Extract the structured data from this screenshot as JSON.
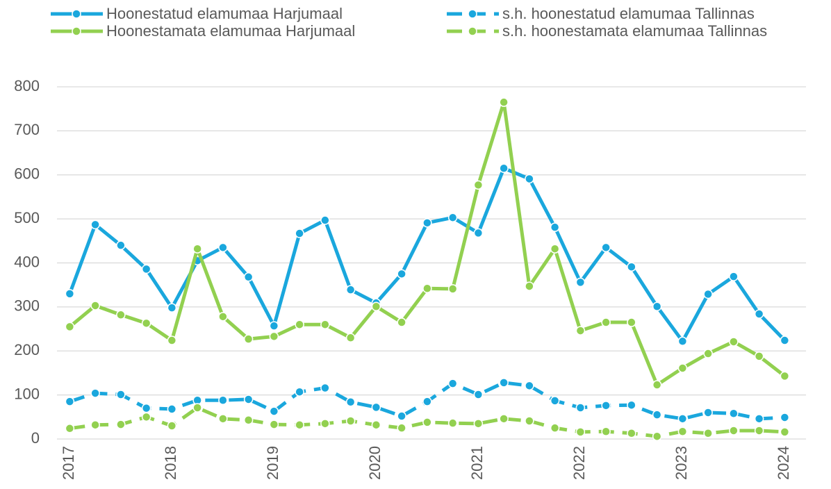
{
  "chart_data": {
    "type": "line",
    "categories": [
      "2017",
      null,
      null,
      null,
      "2018",
      null,
      null,
      null,
      "2019",
      null,
      null,
      null,
      "2020",
      null,
      null,
      null,
      "2021",
      null,
      null,
      null,
      "2022",
      null,
      null,
      null,
      "2023",
      null,
      null,
      null,
      "2024"
    ],
    "series": [
      {
        "name": "Hoonestatud elamumaa Harjumaal",
        "color": "#1aa7dd",
        "dashed": false,
        "values": [
          330,
          487,
          440,
          386,
          298,
          405,
          435,
          368,
          257,
          467,
          497,
          339,
          309,
          375,
          491,
          503,
          468,
          615,
          591,
          481,
          356,
          435,
          391,
          301,
          222,
          329,
          369,
          284,
          224
        ]
      },
      {
        "name": "s.h. hoonestatud elamumaa Tallinnas",
        "color": "#1aa7dd",
        "dashed": true,
        "values": [
          85,
          104,
          101,
          70,
          68,
          88,
          88,
          90,
          63,
          107,
          116,
          84,
          72,
          52,
          85,
          126,
          101,
          128,
          121,
          87,
          71,
          76,
          77,
          55,
          46,
          60,
          58,
          46,
          49
        ]
      },
      {
        "name": "Hoonestamata elamumaa Harjumaal",
        "color": "#92d050",
        "dashed": false,
        "values": [
          255,
          303,
          282,
          263,
          224,
          432,
          278,
          227,
          233,
          260,
          260,
          230,
          301,
          265,
          342,
          341,
          577,
          765,
          347,
          432,
          246,
          265,
          265,
          123,
          161,
          194,
          221,
          188,
          143
        ]
      },
      {
        "name": "s.h. hoonestamata elamumaa Tallinnas",
        "color": "#92d050",
        "dashed": true,
        "values": [
          24,
          32,
          33,
          50,
          30,
          71,
          46,
          43,
          33,
          32,
          35,
          41,
          32,
          25,
          38,
          36,
          35,
          46,
          41,
          25,
          16,
          17,
          13,
          6,
          17,
          13,
          19,
          19,
          16
        ]
      }
    ],
    "ylim": [
      0,
      800
    ],
    "yticks": [
      0,
      100,
      200,
      300,
      400,
      500,
      600,
      700,
      800
    ],
    "grid": true
  }
}
